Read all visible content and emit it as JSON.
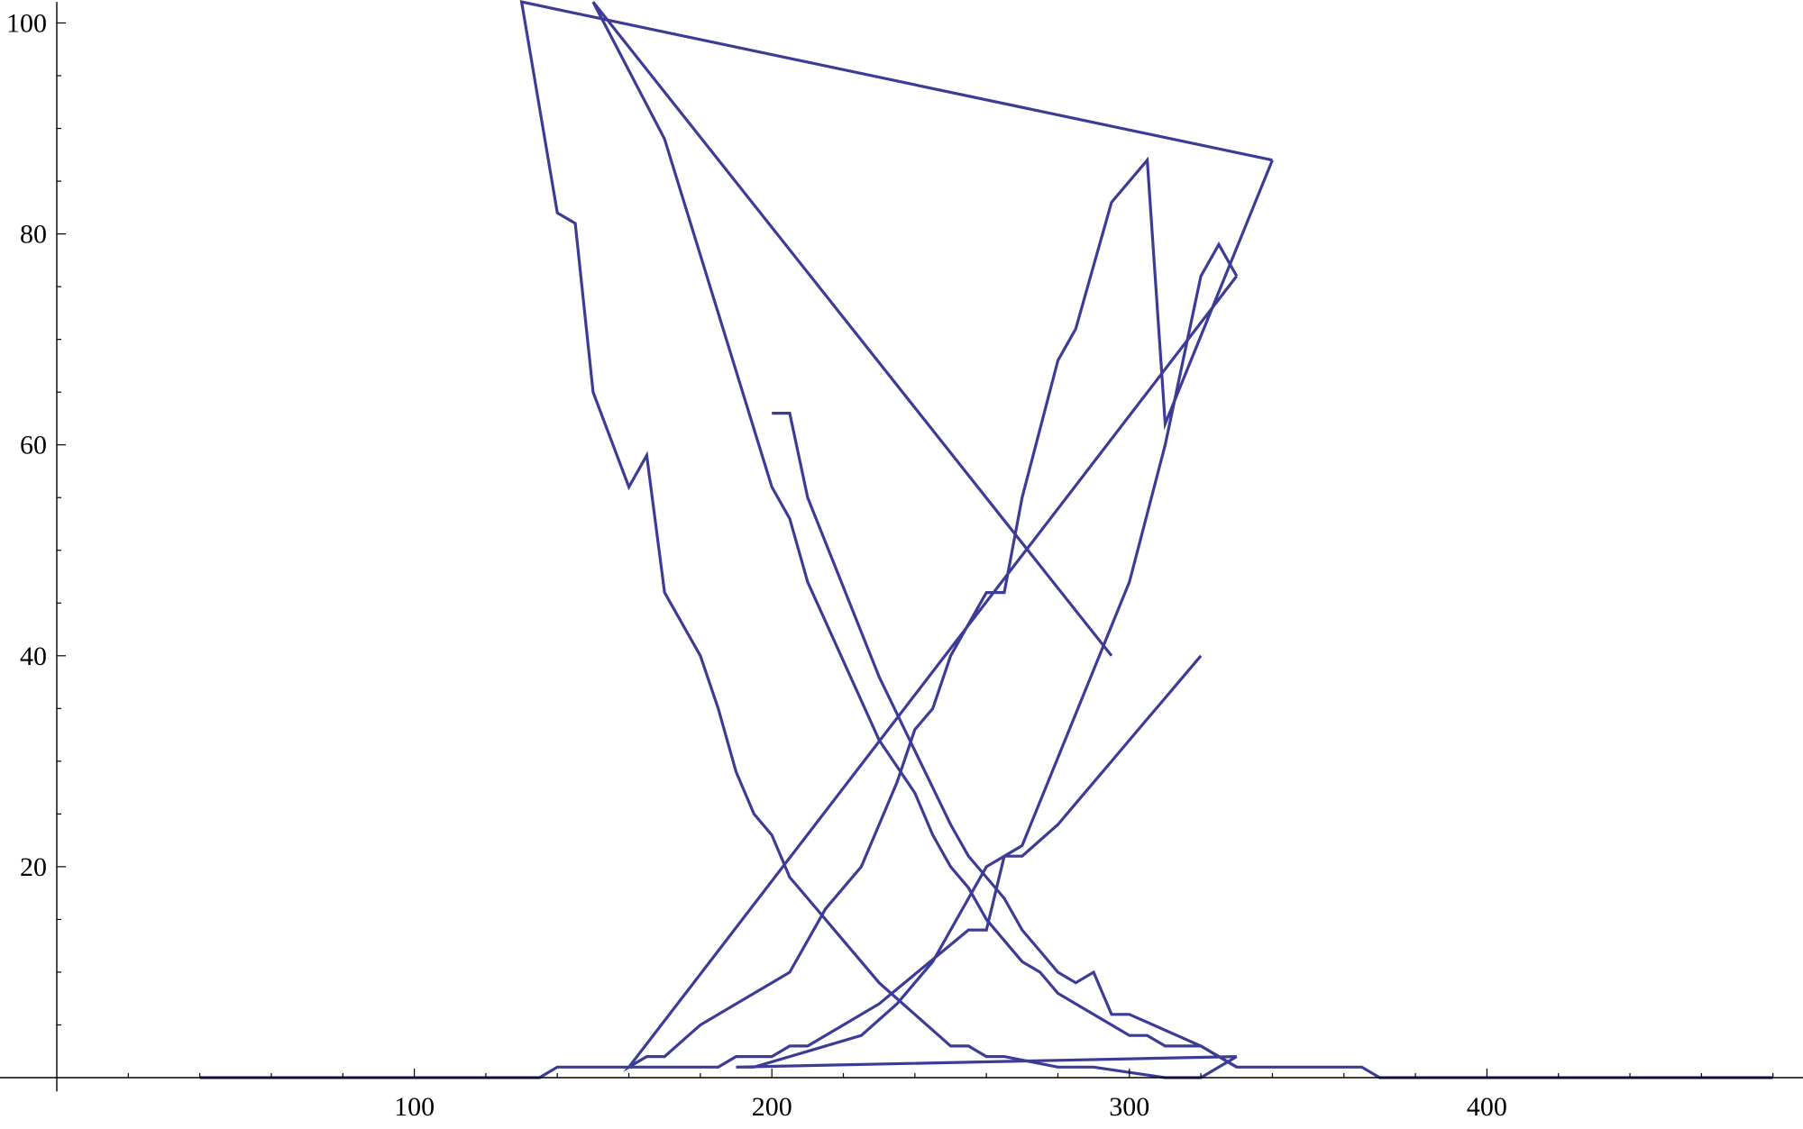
{
  "chart_data": {
    "type": "line",
    "title": "",
    "xlabel": "",
    "ylabel": "",
    "xlim": [
      -20,
      490
    ],
    "ylim": [
      -1.3,
      102
    ],
    "x_ticks": [
      100,
      200,
      300,
      400
    ],
    "x_tick_labels": [
      "100",
      "200",
      "300",
      "400"
    ],
    "y_ticks": [
      20,
      40,
      60,
      80,
      100
    ],
    "y_tick_labels": [
      "20",
      "40",
      "60",
      "80",
      "100"
    ],
    "grid": false,
    "legend": "none",
    "line_color": "#3c3c96",
    "series": [
      {
        "x": [
          40,
          135,
          140,
          185,
          190,
          200,
          205,
          210,
          230,
          255,
          260,
          265,
          270,
          300,
          310,
          320,
          325,
          330
        ],
        "y": [
          0,
          0,
          1,
          1,
          2,
          2,
          3,
          3,
          7,
          14,
          14,
          21,
          22,
          47,
          60,
          76,
          79,
          76
        ]
      },
      {
        "x": [
          330,
          160,
          165,
          170,
          180,
          195,
          200,
          205,
          210,
          215,
          220,
          225,
          230,
          235,
          240,
          245,
          250,
          255,
          260,
          265,
          270,
          280,
          285,
          290,
          295,
          305,
          310,
          340
        ],
        "y": [
          76,
          1,
          2,
          2,
          5,
          8,
          9,
          10,
          13,
          16,
          18,
          20,
          24,
          28,
          33,
          35,
          40,
          43,
          46,
          46,
          55,
          68,
          71,
          77,
          83,
          87,
          62,
          87
        ]
      },
      {
        "x": [
          340,
          130,
          140,
          145,
          150,
          160,
          165,
          170,
          180,
          185,
          190,
          195,
          200,
          205,
          210,
          220,
          230,
          240,
          250,
          255,
          260,
          265,
          280,
          290,
          310,
          320,
          325,
          330
        ],
        "y": [
          87,
          102,
          82,
          81,
          65,
          56,
          59,
          46,
          40,
          35,
          29,
          25,
          23,
          19,
          17,
          13,
          9,
          6,
          3,
          3,
          2,
          2,
          1,
          1,
          0,
          0,
          1,
          2
        ]
      },
      {
        "x": [
          330,
          190,
          195,
          225,
          235,
          240,
          245,
          250,
          255,
          260,
          265,
          270,
          280,
          285,
          290,
          295,
          300,
          305,
          310,
          315,
          320
        ],
        "y": [
          2,
          1,
          1,
          4,
          7,
          9,
          11,
          14,
          17,
          20,
          21,
          21,
          24,
          26,
          28,
          30,
          32,
          34,
          36,
          38,
          40
        ]
      },
      {
        "x": [
          295,
          150,
          170,
          200,
          205,
          210,
          230,
          240,
          245,
          250,
          255,
          260,
          265,
          270,
          275,
          280,
          285,
          295,
          300,
          305,
          310,
          315,
          320,
          330,
          340,
          365,
          370,
          480
        ],
        "y": [
          40,
          102,
          89,
          56,
          53,
          47,
          32,
          27,
          23,
          20,
          18,
          15,
          13,
          11,
          10,
          8,
          7,
          5,
          4,
          4,
          3,
          3,
          3,
          1,
          1,
          1,
          0,
          0
        ]
      },
      {
        "x": [
          200,
          205,
          210,
          230,
          240,
          250,
          255,
          260,
          265,
          270,
          275,
          280,
          285,
          290,
          295,
          300,
          320,
          330
        ],
        "y": [
          63,
          63,
          55,
          38,
          31,
          24,
          21,
          19,
          17,
          14,
          12,
          10,
          9,
          10,
          6,
          6,
          3,
          1
        ]
      }
    ]
  }
}
